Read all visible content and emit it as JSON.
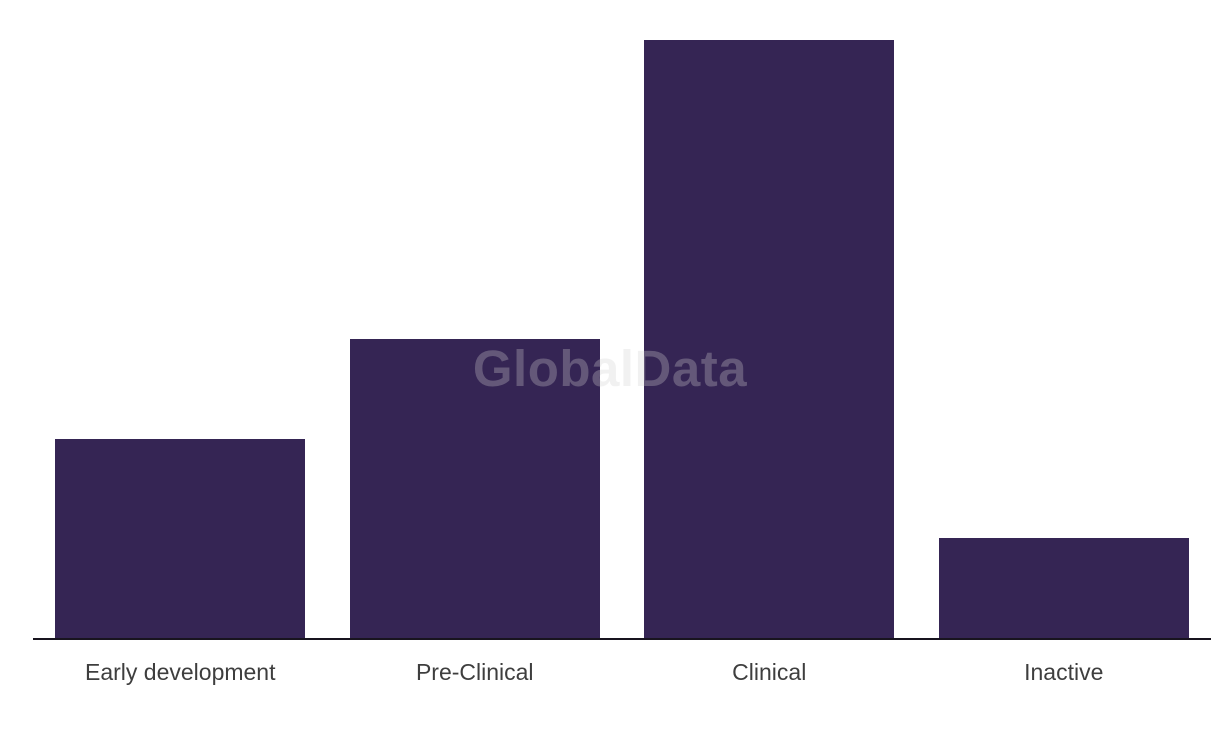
{
  "colors": {
    "background": "#ffffff",
    "bar": "#352554",
    "axis": "#18141f",
    "label": "#3e3e3e",
    "watermark": "rgba(208,208,208,0.3)"
  },
  "watermark": {
    "text": "GlobalData"
  },
  "chart_data": {
    "type": "bar",
    "title": "",
    "xlabel": "",
    "ylabel": "",
    "categories": [
      "Early development",
      "Pre-Clinical",
      "Clinical",
      "Inactive"
    ],
    "values": [
      20,
      30,
      60,
      10
    ],
    "ylim": [
      0,
      64
    ],
    "grid": false,
    "legend": false,
    "y_axis_shown": false,
    "bar_ratio_note": "bar heights proportional 2:3:6:1; no value axis visible"
  }
}
